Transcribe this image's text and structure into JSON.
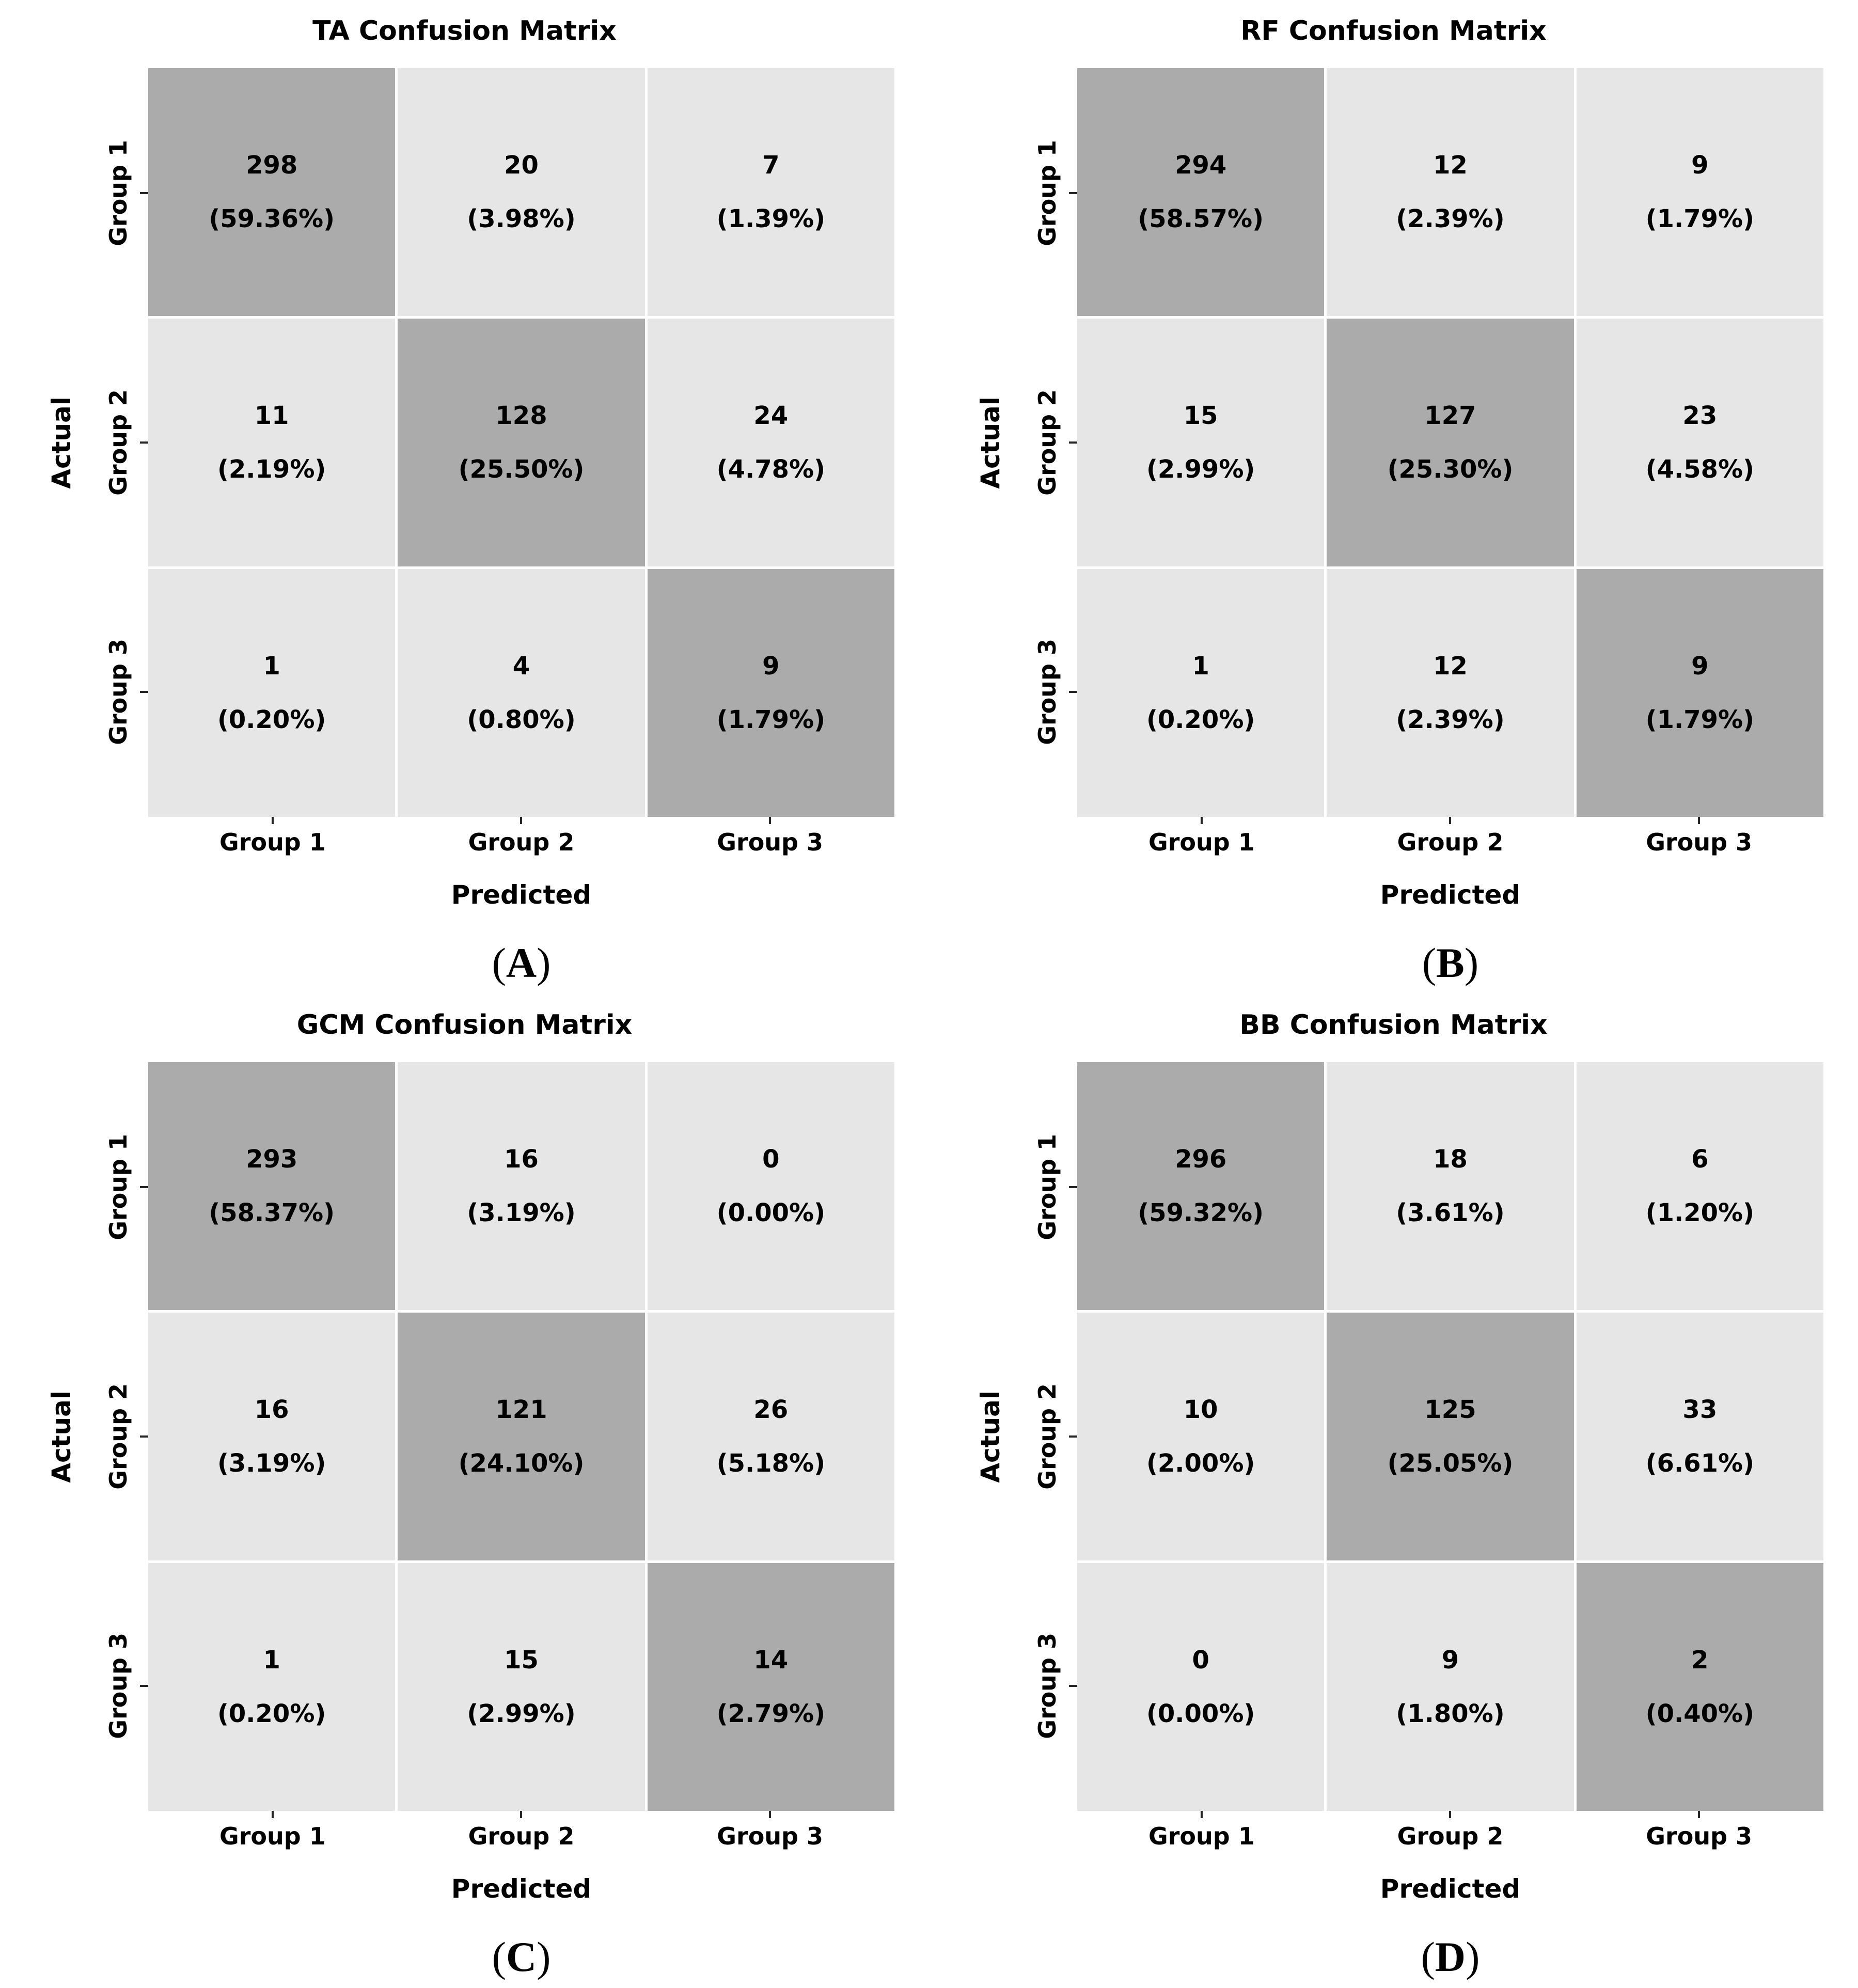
{
  "chart_data": [
    {
      "type": "heatmap",
      "title": "TA Confusion Matrix",
      "xlabel": "Predicted",
      "ylabel": "Actual",
      "x_categories": [
        "Group 1",
        "Group 2",
        "Group 3"
      ],
      "y_categories": [
        "Group 1",
        "Group 2",
        "Group 3"
      ],
      "counts": [
        [
          298,
          20,
          7
        ],
        [
          11,
          128,
          24
        ],
        [
          1,
          4,
          9
        ]
      ],
      "percentages": [
        [
          59.36,
          3.98,
          1.39
        ],
        [
          2.19,
          25.5,
          4.78
        ],
        [
          0.2,
          0.8,
          1.79
        ]
      ],
      "caption": "(A)",
      "legend": "none",
      "grid": "white cell separators",
      "color_scheme": {
        "diagonal": "#ababab",
        "off_diagonal": "#e6e6e6"
      }
    },
    {
      "type": "heatmap",
      "title": "RF Confusion Matrix",
      "xlabel": "Predicted",
      "ylabel": "Actual",
      "x_categories": [
        "Group 1",
        "Group 2",
        "Group 3"
      ],
      "y_categories": [
        "Group 1",
        "Group 2",
        "Group 3"
      ],
      "counts": [
        [
          294,
          12,
          9
        ],
        [
          15,
          127,
          23
        ],
        [
          1,
          12,
          9
        ]
      ],
      "percentages": [
        [
          58.57,
          2.39,
          1.79
        ],
        [
          2.99,
          25.3,
          4.58
        ],
        [
          0.2,
          2.39,
          1.79
        ]
      ],
      "caption": "(B)",
      "legend": "none",
      "grid": "white cell separators",
      "color_scheme": {
        "diagonal": "#ababab",
        "off_diagonal": "#e6e6e6"
      }
    },
    {
      "type": "heatmap",
      "title": "GCM Confusion Matrix",
      "xlabel": "Predicted",
      "ylabel": "Actual",
      "x_categories": [
        "Group 1",
        "Group 2",
        "Group 3"
      ],
      "y_categories": [
        "Group 1",
        "Group 2",
        "Group 3"
      ],
      "counts": [
        [
          293,
          16,
          0
        ],
        [
          16,
          121,
          26
        ],
        [
          1,
          15,
          14
        ]
      ],
      "percentages": [
        [
          58.37,
          3.19,
          0.0
        ],
        [
          3.19,
          24.1,
          5.18
        ],
        [
          0.2,
          2.99,
          2.79
        ]
      ],
      "caption": "(C)",
      "legend": "none",
      "grid": "white cell separators",
      "color_scheme": {
        "diagonal": "#ababab",
        "off_diagonal": "#e6e6e6"
      }
    },
    {
      "type": "heatmap",
      "title": "BB Confusion Matrix",
      "xlabel": "Predicted",
      "ylabel": "Actual",
      "x_categories": [
        "Group 1",
        "Group 2",
        "Group 3"
      ],
      "y_categories": [
        "Group 1",
        "Group 2",
        "Group 3"
      ],
      "counts": [
        [
          296,
          18,
          6
        ],
        [
          10,
          125,
          33
        ],
        [
          0,
          9,
          2
        ]
      ],
      "percentages": [
        [
          59.32,
          3.61,
          1.2
        ],
        [
          2.0,
          25.05,
          6.61
        ],
        [
          0.0,
          1.8,
          0.4
        ]
      ],
      "caption": "(D)",
      "legend": "none",
      "grid": "white cell separators",
      "color_scheme": {
        "diagonal": "#ababab",
        "off_diagonal": "#e6e6e6"
      }
    }
  ],
  "colors": {
    "diagonal": "#ababab",
    "off_diagonal": "#e6e6e6",
    "background": "#ffffff",
    "text": "#000000"
  },
  "panels": [
    {
      "title": "TA Confusion Matrix",
      "ylabel": "Actual",
      "xlabel": "Predicted",
      "caption_open": "(",
      "caption_letter": "A",
      "caption_close": ")",
      "y_ticks": [
        "Group 1",
        "Group 2",
        "Group 3"
      ],
      "x_ticks": [
        "Group 1",
        "Group 2",
        "Group 3"
      ],
      "cells": [
        {
          "count": "298",
          "pct": "(59.36%)"
        },
        {
          "count": "20",
          "pct": "(3.98%)"
        },
        {
          "count": "7",
          "pct": "(1.39%)"
        },
        {
          "count": "11",
          "pct": "(2.19%)"
        },
        {
          "count": "128",
          "pct": "(25.50%)"
        },
        {
          "count": "24",
          "pct": "(4.78%)"
        },
        {
          "count": "1",
          "pct": "(0.20%)"
        },
        {
          "count": "4",
          "pct": "(0.80%)"
        },
        {
          "count": "9",
          "pct": "(1.79%)"
        }
      ]
    },
    {
      "title": "RF Confusion Matrix",
      "ylabel": "Actual",
      "xlabel": "Predicted",
      "caption_open": "(",
      "caption_letter": "B",
      "caption_close": ")",
      "y_ticks": [
        "Group 1",
        "Group 2",
        "Group 3"
      ],
      "x_ticks": [
        "Group 1",
        "Group 2",
        "Group 3"
      ],
      "cells": [
        {
          "count": "294",
          "pct": "(58.57%)"
        },
        {
          "count": "12",
          "pct": "(2.39%)"
        },
        {
          "count": "9",
          "pct": "(1.79%)"
        },
        {
          "count": "15",
          "pct": "(2.99%)"
        },
        {
          "count": "127",
          "pct": "(25.30%)"
        },
        {
          "count": "23",
          "pct": "(4.58%)"
        },
        {
          "count": "1",
          "pct": "(0.20%)"
        },
        {
          "count": "12",
          "pct": "(2.39%)"
        },
        {
          "count": "9",
          "pct": "(1.79%)"
        }
      ]
    },
    {
      "title": "GCM Confusion Matrix",
      "ylabel": "Actual",
      "xlabel": "Predicted",
      "caption_open": "(",
      "caption_letter": "C",
      "caption_close": ")",
      "y_ticks": [
        "Group 1",
        "Group 2",
        "Group 3"
      ],
      "x_ticks": [
        "Group 1",
        "Group 2",
        "Group 3"
      ],
      "cells": [
        {
          "count": "293",
          "pct": "(58.37%)"
        },
        {
          "count": "16",
          "pct": "(3.19%)"
        },
        {
          "count": "0",
          "pct": "(0.00%)"
        },
        {
          "count": "16",
          "pct": "(3.19%)"
        },
        {
          "count": "121",
          "pct": "(24.10%)"
        },
        {
          "count": "26",
          "pct": "(5.18%)"
        },
        {
          "count": "1",
          "pct": "(0.20%)"
        },
        {
          "count": "15",
          "pct": "(2.99%)"
        },
        {
          "count": "14",
          "pct": "(2.79%)"
        }
      ]
    },
    {
      "title": "BB Confusion Matrix",
      "ylabel": "Actual",
      "xlabel": "Predicted",
      "caption_open": "(",
      "caption_letter": "D",
      "caption_close": ")",
      "y_ticks": [
        "Group 1",
        "Group 2",
        "Group 3"
      ],
      "x_ticks": [
        "Group 1",
        "Group 2",
        "Group 3"
      ],
      "cells": [
        {
          "count": "296",
          "pct": "(59.32%)"
        },
        {
          "count": "18",
          "pct": "(3.61%)"
        },
        {
          "count": "6",
          "pct": "(1.20%)"
        },
        {
          "count": "10",
          "pct": "(2.00%)"
        },
        {
          "count": "125",
          "pct": "(25.05%)"
        },
        {
          "count": "33",
          "pct": "(6.61%)"
        },
        {
          "count": "0",
          "pct": "(0.00%)"
        },
        {
          "count": "9",
          "pct": "(1.80%)"
        },
        {
          "count": "2",
          "pct": "(0.40%)"
        }
      ]
    }
  ]
}
